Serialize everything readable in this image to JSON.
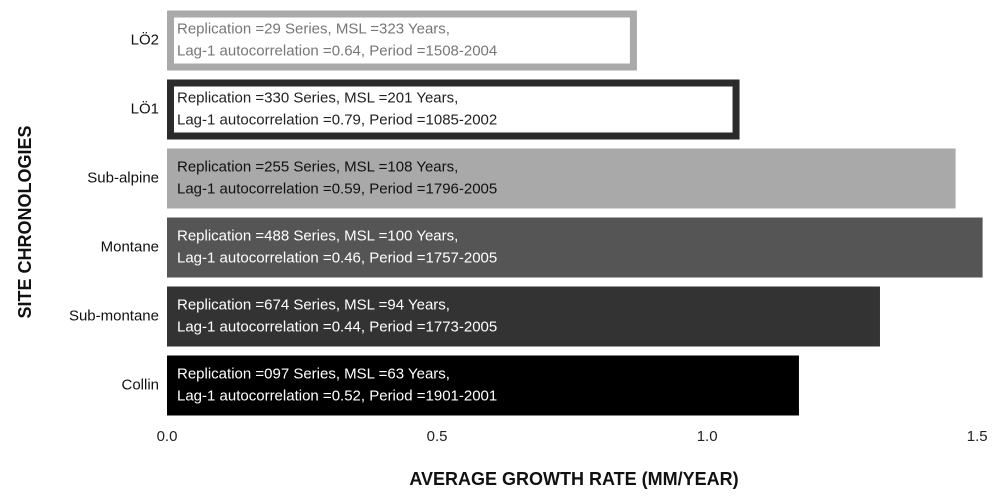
{
  "chart_data": {
    "type": "bar",
    "orientation": "horizontal",
    "x_label": "AVERAGE GROWTH RATE (MM/YEAR)",
    "y_label": "SITE CHRONOLOGIES",
    "categories": [
      "LÖ2",
      "LÖ1",
      "Sub-alpine",
      "Montane",
      "Sub-montane",
      "Collin"
    ],
    "values": [
      0.87,
      1.06,
      1.46,
      1.51,
      1.32,
      1.17
    ],
    "colors": [
      "#ffffff",
      "#ffffff",
      "#a9a9a9",
      "#555555",
      "#333333",
      "#000000"
    ],
    "border_colors": [
      "#a9a9a9",
      "#2b2b2b",
      null,
      null,
      null,
      null
    ],
    "text_colors": [
      "#777777",
      "#222222",
      "#111111",
      "#ffffff",
      "#ffffff",
      "#ffffff"
    ],
    "annotations": [
      [
        "Replication =29 Series, MSL =323 Years,",
        "Lag-1 autocorrelation =0.64, Period =1508-2004"
      ],
      [
        "Replication =330 Series, MSL =201 Years,",
        "Lag-1 autocorrelation =0.79, Period =1085-2002"
      ],
      [
        "Replication =255 Series, MSL =108 Years,",
        "Lag-1 autocorrelation =0.59, Period =1796-2005"
      ],
      [
        "Replication =488 Series, MSL =100 Years,",
        "Lag-1 autocorrelation =0.46, Period =1757-2005"
      ],
      [
        "Replication =674 Series, MSL =94 Years,",
        "Lag-1 autocorrelation =0.44, Period =1773-2005"
      ],
      [
        "Replication =097 Series, MSL =63 Years,",
        "Lag-1 autocorrelation =0.52, Period =1901-2001"
      ]
    ],
    "xlim": [
      0,
      1.52
    ],
    "xticks": [
      {
        "value": 0,
        "label": "0.0"
      },
      0.5,
      {
        "value": 1,
        "label": "1.0"
      },
      1.5
    ]
  }
}
